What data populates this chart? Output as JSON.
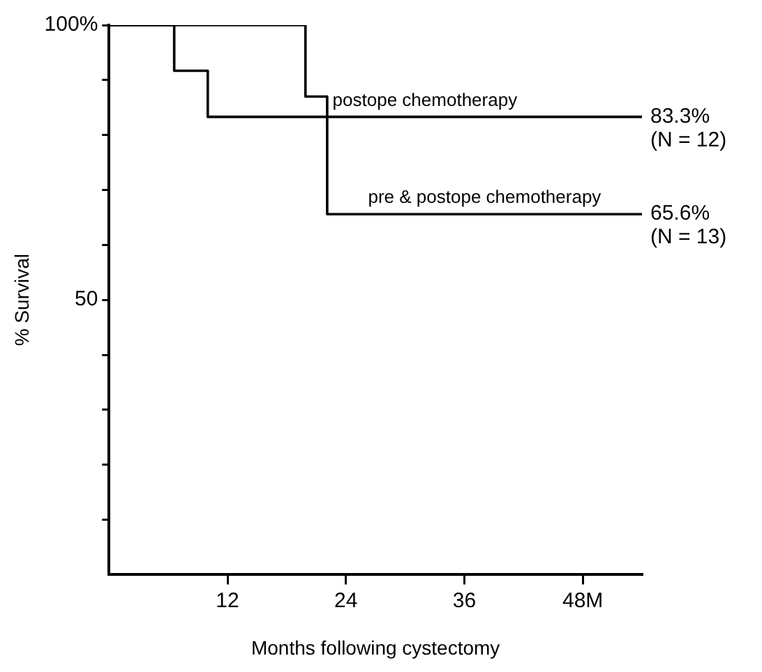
{
  "chart_data": {
    "type": "step",
    "xlabel": "Months following cystectomy",
    "ylabel": "% Survival",
    "series": [
      {
        "name": "postope chemotherapy",
        "color": "#000000",
        "x": [
          0,
          6.6,
          10,
          54
        ],
        "values": [
          100,
          91.7,
          83.3,
          83.3
        ]
      },
      {
        "name": "pre & postope chemotherapy",
        "color": "#000000",
        "x": [
          0,
          19.9,
          22.1,
          54
        ],
        "values": [
          100,
          87,
          65.6,
          65.6
        ]
      }
    ],
    "annotations": [
      {
        "text": "83.3%\n(N = 12)",
        "x": 54,
        "y": 83.3
      },
      {
        "text": "65.6%\n(N = 13)",
        "x": 54,
        "y": 65.6
      }
    ],
    "xlim": [
      0,
      54
    ],
    "xticks": [
      12,
      24,
      36,
      {
        "value": 48,
        "label": "48M"
      }
    ],
    "ylim": [
      0,
      100
    ],
    "yticks": [
      {
        "value": 10,
        "label": null
      },
      {
        "value": 20,
        "label": null
      },
      {
        "value": 30,
        "label": null
      },
      {
        "value": 40,
        "label": null
      },
      50,
      {
        "value": 60,
        "label": null
      },
      {
        "value": 70,
        "label": null
      },
      {
        "value": 80,
        "label": null
      },
      {
        "value": 90,
        "label": null
      },
      {
        "value": 100,
        "label": "100%"
      }
    ],
    "marker": "none",
    "line_style": "solid"
  }
}
